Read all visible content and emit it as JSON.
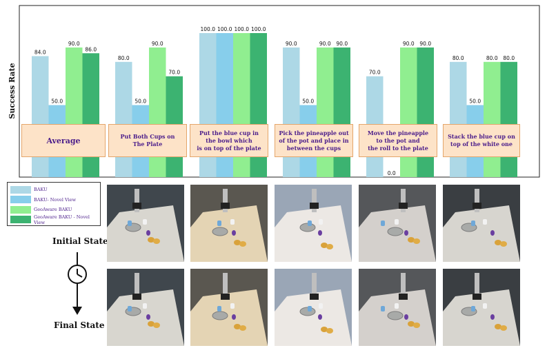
{
  "chart_data": {
    "type": "bar",
    "ylabel": "Success Rate",
    "ylim": [
      0,
      100
    ],
    "grid": false,
    "legend_position": "bottom-left, below the plot",
    "categories": [
      "Average",
      "Put Both Cups on\nThe Plate",
      "Put the blue cup in\nthe bowl which\nis on top of the plate",
      "Pick the pineapple out\nof the pot and place in\nbetween the cups",
      "Move the pineapple\nto the pot and\nthe roll to the plate",
      "Stack the blue cup on\ntop of the white one"
    ],
    "series": [
      {
        "name": "BAKU",
        "color": "#add8e6",
        "values": [
          84.0,
          80.0,
          100.0,
          90.0,
          70.0,
          80.0
        ]
      },
      {
        "name": "BAKU- Novel View",
        "color": "#87ceeb",
        "values": [
          50.0,
          50.0,
          100.0,
          50.0,
          0.0,
          50.0
        ]
      },
      {
        "name": "GeoAware BAKU",
        "color": "#90ee90",
        "values": [
          90.0,
          90.0,
          100.0,
          90.0,
          90.0,
          80.0
        ]
      },
      {
        "name": "GeoAware BAKU - Novel View",
        "color": "#3cb371",
        "values": [
          86.0,
          70.0,
          100.0,
          90.0,
          90.0,
          80.0
        ]
      }
    ],
    "data_labels": [
      [
        "84.0",
        "80.0",
        "100.0",
        "90.0",
        "70.0",
        "80.0"
      ],
      [
        "50.0",
        "50.0",
        "100.0",
        "50.0",
        "0.0",
        "50.0"
      ],
      [
        "90.0",
        "90.0",
        "100.0",
        "90.0",
        "90.0",
        "80.0"
      ],
      [
        "86.0",
        "70.0",
        "100.0",
        "90.0",
        "90.0",
        "80.0"
      ]
    ]
  },
  "states": {
    "initial": "Initial State",
    "final": "Final State",
    "icon": "clock-arrow-icon"
  },
  "photos": {
    "initial_scenes": [
      "baku-initial-1",
      "baku-initial-2",
      "baku-initial-3",
      "baku-initial-4",
      "baku-initial-5"
    ],
    "final_scenes": [
      "baku-final-1",
      "baku-final-2",
      "baku-final-3",
      "baku-final-4",
      "baku-final-5"
    ]
  }
}
